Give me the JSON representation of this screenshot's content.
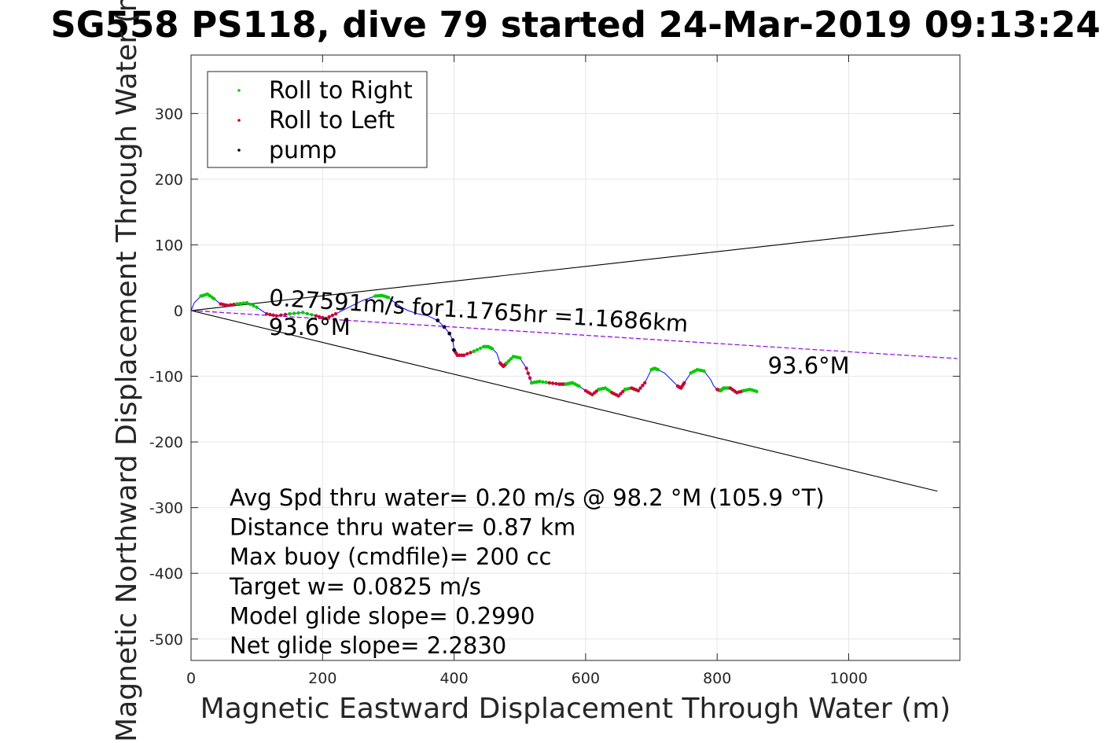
{
  "chart_data": {
    "type": "line",
    "title": "SG558 PS118, dive 79 started 24-Mar-2019 09:13:24",
    "xlabel": "Magnetic Eastward Displacement Through Water (m)",
    "ylabel": "Magnetic Northward Displacement Through Water (m)",
    "xlim": [
      0,
      1165
    ],
    "ylim": [
      -530,
      390
    ],
    "x_ticks": [
      0,
      200,
      400,
      600,
      800,
      1000
    ],
    "y_ticks": [
      300,
      200,
      100,
      0,
      -100,
      -200,
      -300,
      -400,
      -500
    ],
    "grid": true,
    "legend_position": "top-left",
    "legend": [
      {
        "label": "Roll to Right",
        "color": "#00cc00"
      },
      {
        "label": "Roll to Left",
        "color": "#cc0000"
      },
      {
        "label": "pump",
        "color": "#000000"
      }
    ],
    "lines": [
      {
        "name": "upper bound",
        "color": "#000000",
        "x": [
          0,
          1160
        ],
        "y": [
          0,
          130
        ]
      },
      {
        "name": "lower bound",
        "color": "#000000",
        "x": [
          0,
          1135
        ],
        "y": [
          0,
          -275
        ]
      },
      {
        "name": "heading",
        "color": "#cc00cc",
        "x": [
          0,
          1165
        ],
        "y": [
          0,
          -73
        ]
      }
    ],
    "track": {
      "color": "#0000ff",
      "x": [
        0,
        5,
        15,
        25,
        35,
        45,
        55,
        70,
        85,
        100,
        115,
        130,
        150,
        170,
        190,
        205,
        220,
        240,
        260,
        280,
        290,
        300,
        310,
        320,
        330,
        345,
        360,
        375,
        385,
        393,
        398,
        400,
        405,
        415,
        430,
        445,
        452,
        458,
        465,
        470,
        475,
        480,
        490,
        500,
        505,
        510,
        518,
        530,
        545,
        560,
        570,
        580,
        590,
        600,
        610,
        620,
        630,
        640,
        650,
        660,
        670,
        680,
        690,
        695,
        700,
        705,
        710,
        720,
        730,
        740,
        745,
        750,
        760,
        770,
        780,
        790,
        795,
        800,
        805,
        810,
        820,
        830,
        840,
        850,
        860
      ],
      "y": [
        0,
        12,
        22,
        25,
        18,
        10,
        8,
        10,
        12,
        5,
        -5,
        -8,
        -5,
        -3,
        -8,
        -12,
        -5,
        5,
        15,
        22,
        23,
        20,
        12,
        5,
        0,
        -5,
        -8,
        -15,
        -25,
        -35,
        -45,
        -60,
        -68,
        -68,
        -62,
        -55,
        -55,
        -58,
        -65,
        -80,
        -85,
        -80,
        -70,
        -72,
        -80,
        -88,
        -110,
        -108,
        -110,
        -112,
        -112,
        -110,
        -115,
        -122,
        -128,
        -120,
        -118,
        -125,
        -130,
        -120,
        -118,
        -122,
        -110,
        -100,
        -90,
        -88,
        -90,
        -95,
        -105,
        -115,
        -118,
        -110,
        -95,
        -90,
        -92,
        -105,
        -115,
        -120,
        -122,
        -118,
        -118,
        -125,
        -122,
        -120,
        -123
      ]
    },
    "annotations": [
      {
        "text": "0.27591m/s for1.1765hr =1.1686km",
        "x": 118,
        "y": 8,
        "rotation_deg": 3.6
      },
      {
        "text": "93.6°M",
        "x": 118,
        "y": -37
      },
      {
        "text": "93.6°M",
        "x": 877,
        "y": -96
      }
    ]
  },
  "stats": [
    "Avg Spd thru water=  0.20 m/s @  98.2 °M (105.9 °T)",
    "Distance thru water=  0.87 km",
    "Max buoy (cmdfile)= 200 cc",
    "Target w= 0.0825 m/s",
    "Model glide slope= 0.2990",
    "Net glide slope= 2.2830"
  ]
}
